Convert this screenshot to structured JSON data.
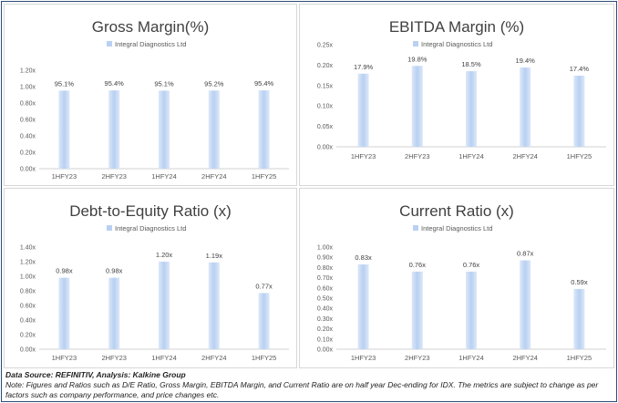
{
  "chart_data": [
    {
      "type": "bar",
      "title": "Gross Margin(%)",
      "legend": "Integral Diagnostics Ltd",
      "legend_position": "top",
      "categories": [
        "1HFY23",
        "2HFY23",
        "1HFY24",
        "2HFY24",
        "1HFY25"
      ],
      "values": [
        0.951,
        0.954,
        0.951,
        0.952,
        0.954
      ],
      "data_labels": [
        "95.1%",
        "95.4%",
        "95.1%",
        "95.2%",
        "95.4%"
      ],
      "ylim": [
        0,
        1.2
      ],
      "yticks": [
        "0.00x",
        "0.20x",
        "0.40x",
        "0.60x",
        "0.80x",
        "1.00x",
        "1.20x"
      ],
      "grid": false
    },
    {
      "type": "bar",
      "title": "EBITDA Margin (%)",
      "legend": "Integral Diagnostics Ltd",
      "legend_position": "top",
      "categories": [
        "1HFY23",
        "2HFY23",
        "1HFY24",
        "2HFY24",
        "1HFY25"
      ],
      "values": [
        0.179,
        0.198,
        0.185,
        0.194,
        0.174
      ],
      "data_labels": [
        "17.9%",
        "19.8%",
        "18.5%",
        "19.4%",
        "17.4%"
      ],
      "ylim": [
        0,
        0.25
      ],
      "yticks": [
        "0.00x",
        "0.05x",
        "0.10x",
        "0.15x",
        "0.20x",
        "0.25x"
      ],
      "grid": false
    },
    {
      "type": "bar",
      "title": "Debt-to-Equity  Ratio (x)",
      "legend": "Integral Diagnostics Ltd",
      "legend_position": "top",
      "categories": [
        "1HFY23",
        "2HFY23",
        "1HFY24",
        "2HFY24",
        "1HFY25"
      ],
      "values": [
        0.98,
        0.98,
        1.2,
        1.19,
        0.77
      ],
      "data_labels": [
        "0.98x",
        "0.98x",
        "1.20x",
        "1.19x",
        "0.77x"
      ],
      "ylim": [
        0,
        1.4
      ],
      "yticks": [
        "0.00x",
        "0.20x",
        "0.40x",
        "0.60x",
        "0.80x",
        "1.00x",
        "1.20x",
        "1.40x"
      ],
      "grid": false
    },
    {
      "type": "bar",
      "title": "Current Ratio (x)",
      "legend": "Integral Diagnostics Ltd",
      "legend_position": "top",
      "categories": [
        "1HFY23",
        "2HFY23",
        "1HFY24",
        "2HFY24",
        "1HFY25"
      ],
      "values": [
        0.83,
        0.76,
        0.76,
        0.87,
        0.59
      ],
      "data_labels": [
        "0.83x",
        "0.76x",
        "0.76x",
        "0.87x",
        "0.59x"
      ],
      "ylim": [
        0,
        1.0
      ],
      "yticks": [
        "0.00x",
        "0.10x",
        "0.20x",
        "0.30x",
        "0.40x",
        "0.50x",
        "0.60x",
        "0.70x",
        "0.80x",
        "0.90x",
        "1.00x"
      ],
      "grid": false
    }
  ],
  "colors": {
    "bar_light": "#dce8f8",
    "bar_mid": "#b8d0f2",
    "frame": "#2e4a78"
  },
  "footnote": {
    "source": "Data Source: REFINITIV, Analysis: Kalkine Group",
    "note": "Note: Figures and Ratios such as D/E Ratio, Gross Margin, EBITDA Margin, and Current Ratio are on half year Dec-ending for IDX. The metrics are subject to change as per factors such as company performance, and price changes etc."
  }
}
